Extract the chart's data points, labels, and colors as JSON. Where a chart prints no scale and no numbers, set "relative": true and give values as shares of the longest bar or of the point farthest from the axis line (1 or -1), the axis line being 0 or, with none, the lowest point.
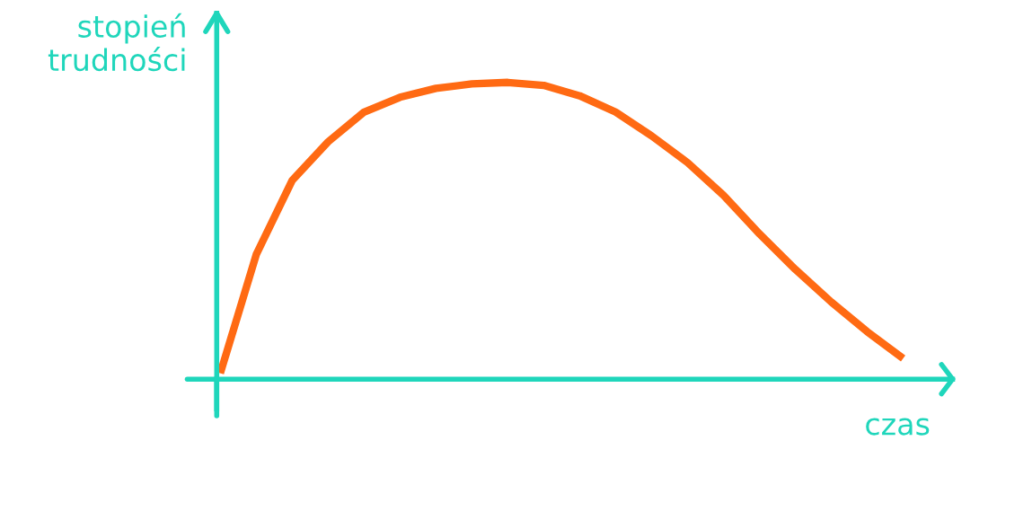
{
  "chart_data": {
    "type": "line",
    "relative": true,
    "xlabel": "czas",
    "ylabel": "stopień\ntrudności",
    "categories": [
      null,
      null,
      null,
      null,
      null,
      null,
      null,
      null,
      null,
      null,
      null,
      null,
      null,
      null,
      null,
      null,
      null,
      null,
      null,
      null
    ],
    "series": [
      {
        "color": "#ff6a13",
        "values": [
          0.02,
          0.42,
          0.67,
          0.8,
          0.9,
          0.95,
          0.98,
          0.995,
          1.0,
          0.99,
          0.955,
          0.9,
          0.82,
          0.73,
          0.62,
          0.49,
          0.37,
          0.26,
          0.16,
          0.07
        ]
      }
    ],
    "legend": false
  }
}
